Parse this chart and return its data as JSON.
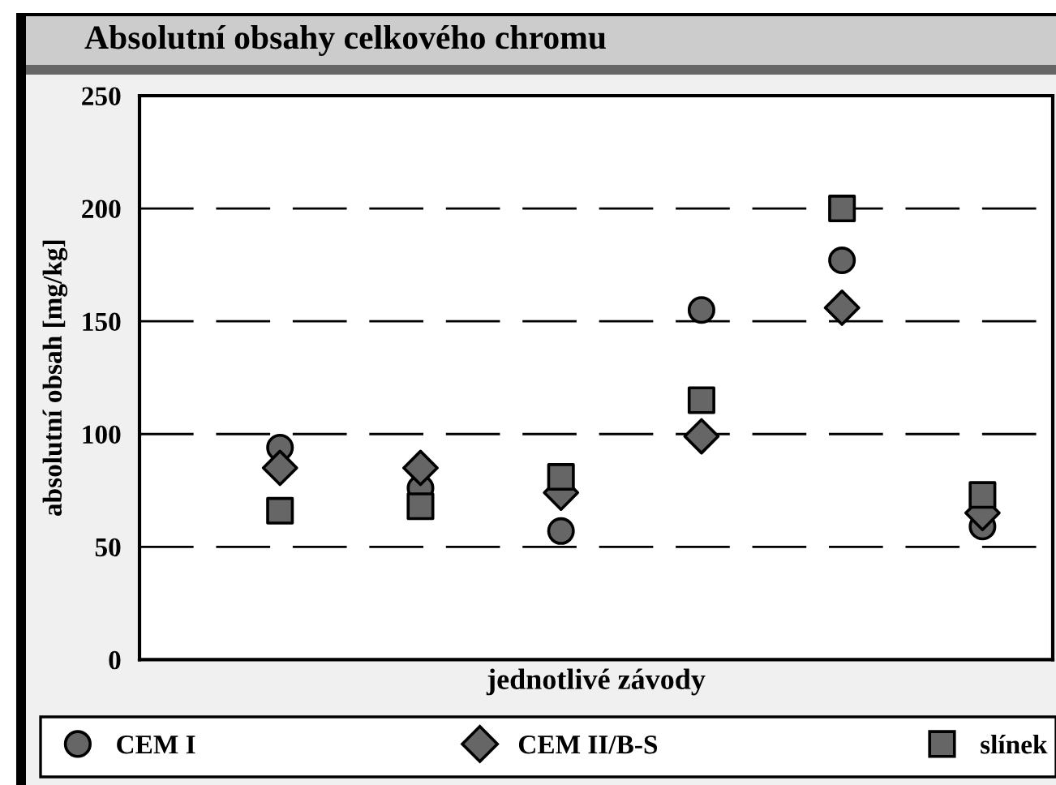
{
  "chart_data": {
    "type": "scatter",
    "title": "Absolutní obsahy celkového chromu",
    "xlabel": "jednotlivé závody",
    "ylabel": "absolutní obsah [mg/kg]",
    "categories": [
      null,
      null,
      null,
      null,
      null,
      null
    ],
    "series": [
      {
        "name": "CEM I",
        "color": "#666666",
        "marker": "circle",
        "values": [
          94,
          76,
          57,
          155,
          177,
          59
        ]
      },
      {
        "name": "CEM II/B-S",
        "color": "#666666",
        "marker": "diamond",
        "values": [
          85,
          85,
          74,
          99,
          156,
          65
        ]
      },
      {
        "name": "slínek",
        "color": "#666666",
        "marker": "square",
        "values": [
          66,
          68,
          81,
          115,
          200,
          73
        ]
      }
    ],
    "ylim": [
      0,
      250
    ],
    "yticks": [
      0,
      50,
      100,
      150,
      200,
      250
    ],
    "grid": "y",
    "legend": "bottom",
    "tick_labels": "y"
  }
}
